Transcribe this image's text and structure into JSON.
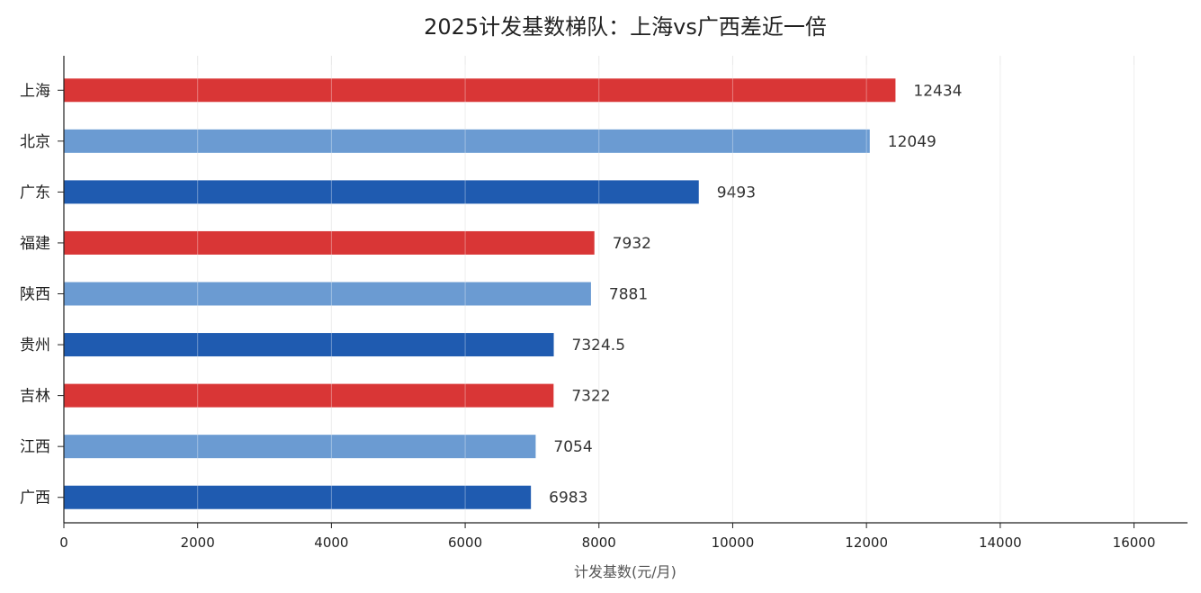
{
  "chart_data": {
    "type": "bar",
    "orientation": "horizontal",
    "title": "2025计发基数梯队：上海vs广西差近一倍",
    "xlabel": "计发基数(元/月)",
    "ylabel": "",
    "xlim": [
      0,
      16800
    ],
    "xticks": [
      0,
      2000,
      4000,
      6000,
      8000,
      10000,
      12000,
      14000,
      16000
    ],
    "xtick_labels": [
      "0",
      "2000",
      "4000",
      "6000",
      "8000",
      "10000",
      "12000",
      "14000",
      "16000"
    ],
    "grid": "vertical",
    "categories": [
      "上海",
      "北京",
      "广东",
      "福建",
      "陕西",
      "贵州",
      "吉林",
      "江西",
      "广西"
    ],
    "values": [
      12434,
      12049,
      9493,
      7932,
      7881,
      7324.5,
      7322,
      7054,
      6983
    ],
    "value_labels": [
      "12434",
      "12049",
      "9493",
      "7932",
      "7881",
      "7324.5",
      "7322",
      "7054",
      "6983"
    ],
    "colors": [
      "#d93636",
      "#6b9bd2",
      "#1f5bb0",
      "#d93636",
      "#6b9bd2",
      "#1f5bb0",
      "#d93636",
      "#6b9bd2",
      "#1f5bb0"
    ]
  }
}
